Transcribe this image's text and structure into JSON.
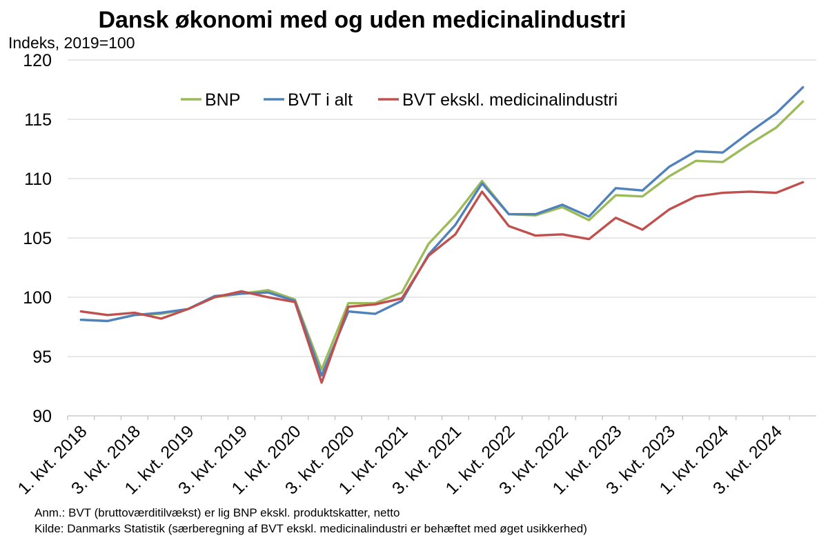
{
  "chart_data": {
    "type": "line",
    "title": "Dansk økonomi med og uden medicinalindustri",
    "ylabel": "Indeks, 2019=100",
    "ylim": [
      90,
      120
    ],
    "yticks": [
      90,
      95,
      100,
      105,
      110,
      115,
      120
    ],
    "grid": true,
    "legend_position": "top-right",
    "x": [
      "1. kvt. 2018",
      "2. kvt. 2018",
      "3. kvt. 2018",
      "4. kvt. 2018",
      "1. kvt. 2019",
      "2. kvt. 2019",
      "3. kvt. 2019",
      "4. kvt. 2019",
      "1. kvt. 2020",
      "2. kvt. 2020",
      "3. kvt. 2020",
      "4. kvt. 2020",
      "1. kvt. 2021",
      "2. kvt. 2021",
      "3. kvt. 2021",
      "4. kvt. 2021",
      "1. kvt. 2022",
      "2. kvt. 2022",
      "3. kvt. 2022",
      "4. kvt. 2022",
      "1. kvt. 2023",
      "2. kvt. 2023",
      "3. kvt. 2023",
      "4. kvt. 2023",
      "1. kvt. 2024",
      "2. kvt. 2024",
      "3. kvt. 2024",
      "4. kvt. 2024"
    ],
    "x_tick_labels": [
      "1. kvt. 2018",
      "",
      "3. kvt. 2018",
      "",
      "1. kvt. 2019",
      "",
      "3. kvt. 2019",
      "",
      "1. kvt. 2020",
      "",
      "3. kvt. 2020",
      "",
      "1. kvt. 2021",
      "",
      "3. kvt. 2021",
      "",
      "1. kvt. 2022",
      "",
      "3. kvt. 2022",
      "",
      "1. kvt. 2023",
      "",
      "3. kvt. 2023",
      "",
      "1. kvt. 2024",
      "",
      "3. kvt. 2024",
      ""
    ],
    "series": [
      {
        "name": "BNP",
        "color": "#9bbb59",
        "values": [
          98.1,
          98.0,
          98.5,
          98.6,
          99.0,
          100.0,
          100.3,
          100.6,
          99.8,
          93.9,
          99.5,
          99.5,
          100.4,
          104.5,
          106.9,
          109.8,
          107.0,
          106.9,
          107.6,
          106.5,
          108.6,
          108.5,
          110.2,
          111.5,
          111.4,
          112.9,
          114.3,
          116.5
        ]
      },
      {
        "name": "BVT i alt",
        "color": "#4f81bd",
        "values": [
          98.1,
          98.0,
          98.5,
          98.7,
          99.0,
          100.1,
          100.3,
          100.4,
          99.7,
          93.4,
          98.8,
          98.6,
          99.7,
          103.6,
          106.1,
          109.6,
          107.0,
          107.0,
          107.8,
          106.8,
          109.2,
          109.0,
          111.0,
          112.3,
          112.2,
          113.9,
          115.5,
          117.7
        ]
      },
      {
        "name": "BVT ekskl. medicinalindustri",
        "color": "#c0504d",
        "values": [
          98.8,
          98.5,
          98.7,
          98.2,
          99.0,
          100.0,
          100.5,
          100.0,
          99.6,
          92.8,
          99.2,
          99.4,
          99.9,
          103.5,
          105.3,
          108.9,
          106.0,
          105.2,
          105.3,
          104.9,
          106.7,
          105.7,
          107.4,
          108.5,
          108.8,
          108.9,
          108.8,
          109.7
        ]
      }
    ]
  },
  "notes": {
    "anm": "Anm.: BVT (bruttoværditilvækst) er lig BNP ekskl. produktskatter, netto",
    "kilde": "Kilde: Danmarks Statistik (særberegning af BVT ekskl. medicinalindustri er behæftet med øget usikkerhed)"
  }
}
